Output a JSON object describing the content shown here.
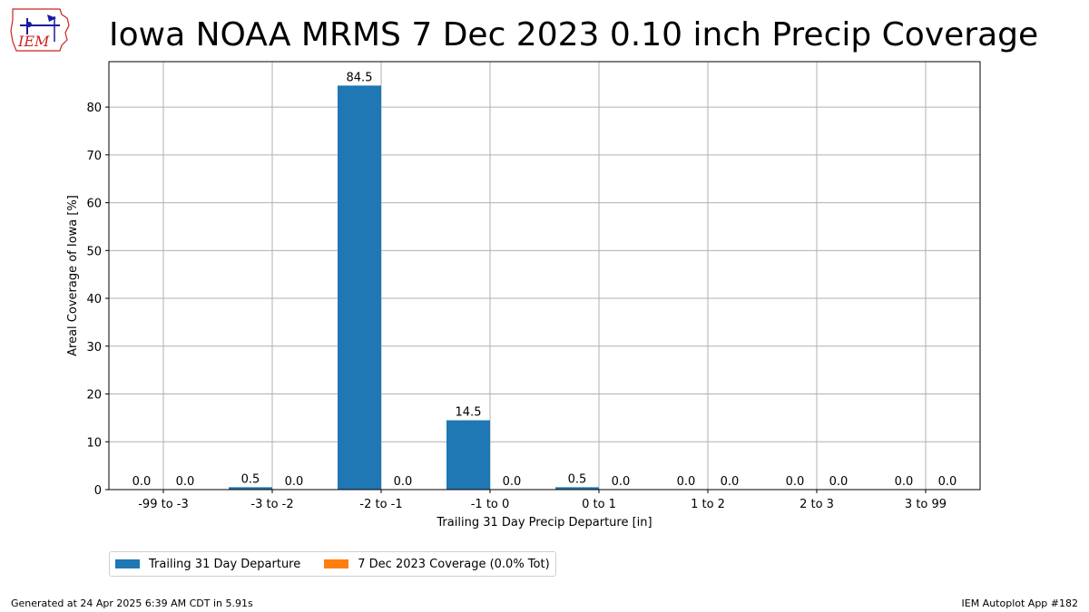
{
  "title": "Iowa NOAA MRMS 7 Dec 2023 0.10 inch Precip Coverage",
  "logo_text": "IEM",
  "footer": {
    "left": "Generated at 24 Apr 2025 6:39 AM CDT in 5.91s",
    "right": "IEM Autoplot App #182"
  },
  "colors": {
    "series1": "#1f77b4",
    "series2": "#ff7f0e",
    "grid": "#b0b0b0",
    "logo": "#cc2222"
  },
  "chart_data": {
    "type": "bar",
    "title": "Iowa NOAA MRMS 7 Dec 2023 0.10 inch Precip Coverage",
    "xlabel": "Trailing 31 Day Precip Departure [in]",
    "ylabel": "Areal Coverage of Iowa [%]",
    "ylim": [
      0,
      89.5
    ],
    "yticks": [
      0,
      10,
      20,
      30,
      40,
      50,
      60,
      70,
      80
    ],
    "grid": true,
    "legend_position": "bottom-left",
    "categories": [
      "-99 to -3",
      "-3 to -2",
      "-2 to -1",
      "-1 to 0",
      "0 to 1",
      "1 to 2",
      "2 to 3",
      "3 to 99"
    ],
    "series": [
      {
        "name": "Trailing 31 Day Departure",
        "values": [
          0.0,
          0.5,
          84.5,
          14.5,
          0.5,
          0.0,
          0.0,
          0.0
        ],
        "labels": [
          "0.0",
          "0.5",
          "84.5",
          "14.5",
          "0.5",
          "0.0",
          "0.0",
          "0.0"
        ]
      },
      {
        "name": "7 Dec 2023 Coverage (0.0% Tot)",
        "values": [
          0.0,
          0.0,
          0.0,
          0.0,
          0.0,
          0.0,
          0.0,
          0.0
        ],
        "labels": [
          "0.0",
          "0.0",
          "0.0",
          "0.0",
          "0.0",
          "0.0",
          "0.0",
          "0.0"
        ]
      }
    ]
  }
}
